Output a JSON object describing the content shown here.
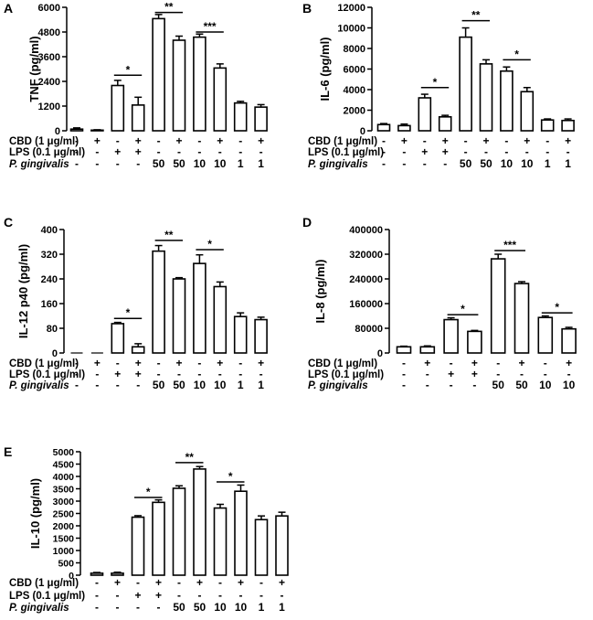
{
  "row_labels": {
    "cbd": "CBD (1 μg/ml)",
    "lps": "LPS (0.1 μg/ml)",
    "pg": "P. gingivalis"
  },
  "chart_data": [
    {
      "id": "A",
      "panel_label": "A",
      "type": "bar",
      "ylabel": "TNF (pg/ml)",
      "ylim": [
        0,
        6000
      ],
      "yticks": [
        0,
        1200,
        2400,
        3600,
        4800,
        6000
      ],
      "ytick_labels": [
        "0",
        "1200",
        "2400",
        "3600",
        "4800",
        "6000"
      ],
      "values": [
        80,
        30,
        2200,
        1250,
        5450,
        4400,
        4550,
        3050,
        1350,
        1150
      ],
      "errors": [
        60,
        20,
        250,
        380,
        200,
        200,
        150,
        200,
        80,
        120
      ],
      "cbd": [
        "-",
        "+",
        "-",
        "+",
        "-",
        "+",
        "-",
        "+",
        "-",
        "+"
      ],
      "lps": [
        "-",
        "-",
        "+",
        "+",
        "-",
        "-",
        "-",
        "-",
        "-",
        "-"
      ],
      "pg": [
        "-",
        "-",
        "-",
        "-",
        "50",
        "50",
        "10",
        "10",
        "1",
        "1"
      ],
      "sig": [
        {
          "from": 2,
          "to": 3,
          "y": 2700,
          "label": "*"
        },
        {
          "from": 4,
          "to": 5,
          "y": 5750,
          "label": "**"
        },
        {
          "from": 6,
          "to": 7,
          "y": 4800,
          "label": "***"
        }
      ]
    },
    {
      "id": "B",
      "panel_label": "B",
      "type": "bar",
      "ylabel": "IL-6 (pg/ml)",
      "ylim": [
        0,
        12000
      ],
      "yticks": [
        0,
        2000,
        4000,
        6000,
        8000,
        10000,
        12000
      ],
      "ytick_labels": [
        "0",
        "2000",
        "4000",
        "6000",
        "8000",
        "10000",
        "12000"
      ],
      "values": [
        600,
        500,
        3200,
        1350,
        9100,
        6500,
        5800,
        3800,
        1050,
        1000
      ],
      "errors": [
        100,
        150,
        350,
        150,
        900,
        400,
        400,
        400,
        100,
        150
      ],
      "cbd": [
        "-",
        "+",
        "-",
        "+",
        "-",
        "+",
        "-",
        "+",
        "-",
        "+"
      ],
      "lps": [
        "-",
        "-",
        "+",
        "+",
        "-",
        "-",
        "-",
        "-",
        "-",
        "-"
      ],
      "pg": [
        "-",
        "-",
        "-",
        "-",
        "50",
        "50",
        "10",
        "10",
        "1",
        "1"
      ],
      "sig": [
        {
          "from": 2,
          "to": 3,
          "y": 4200,
          "label": "*"
        },
        {
          "from": 4,
          "to": 5,
          "y": 10700,
          "label": "**"
        },
        {
          "from": 6,
          "to": 7,
          "y": 6900,
          "label": "*"
        }
      ]
    },
    {
      "id": "C",
      "panel_label": "C",
      "type": "bar",
      "ylabel": "IL-12 p40 (pg/ml)",
      "ylim": [
        0,
        400
      ],
      "yticks": [
        0,
        80,
        160,
        240,
        320,
        400
      ],
      "ytick_labels": [
        "0",
        "80",
        "160",
        "240",
        "320",
        "400"
      ],
      "values": [
        0,
        0,
        95,
        20,
        330,
        240,
        290,
        215,
        118,
        108
      ],
      "errors": [
        0,
        0,
        4,
        10,
        18,
        4,
        28,
        15,
        12,
        8
      ],
      "cbd": [
        "-",
        "+",
        "-",
        "+",
        "-",
        "+",
        "-",
        "+",
        "-",
        "+"
      ],
      "lps": [
        "-",
        "-",
        "+",
        "+",
        "-",
        "-",
        "-",
        "-",
        "-",
        "-"
      ],
      "pg": [
        "-",
        "-",
        "-",
        "-",
        "50",
        "50",
        "10",
        "10",
        "1",
        "1"
      ],
      "sig": [
        {
          "from": 2,
          "to": 3,
          "y": 112,
          "label": "*"
        },
        {
          "from": 4,
          "to": 5,
          "y": 365,
          "label": "**"
        },
        {
          "from": 6,
          "to": 7,
          "y": 335,
          "label": "*"
        }
      ]
    },
    {
      "id": "D",
      "panel_label": "D",
      "type": "bar",
      "ylabel": "IL-8 (pg/ml)",
      "ylim": [
        0,
        400000
      ],
      "yticks": [
        0,
        80000,
        160000,
        240000,
        320000,
        400000
      ],
      "ytick_labels": [
        "0",
        "80000",
        "160000",
        "240000",
        "320000",
        "400000"
      ],
      "values": [
        20000,
        20000,
        108000,
        70000,
        305000,
        225000,
        115000,
        78000
      ],
      "errors": [
        2000,
        3000,
        6000,
        3000,
        15000,
        6000,
        5000,
        5000
      ],
      "cbd": [
        "-",
        "+",
        "-",
        "+",
        "-",
        "+",
        "-",
        "+"
      ],
      "lps": [
        "-",
        "-",
        "+",
        "+",
        "-",
        "-",
        "-",
        "-"
      ],
      "pg": [
        "-",
        "-",
        "-",
        "-",
        "50",
        "50",
        "10",
        "10"
      ],
      "sig": [
        {
          "from": 2,
          "to": 3,
          "y": 124000,
          "label": "*"
        },
        {
          "from": 4,
          "to": 5,
          "y": 332000,
          "label": "***"
        },
        {
          "from": 6,
          "to": 7,
          "y": 130000,
          "label": "*"
        }
      ]
    },
    {
      "id": "E",
      "panel_label": "E",
      "type": "bar",
      "ylabel": "IL-10 (pg/ml)",
      "ylim": [
        0,
        5000
      ],
      "yticks": [
        0,
        500,
        1000,
        1500,
        2000,
        2500,
        3000,
        3500,
        4000,
        4500,
        5000
      ],
      "ytick_labels": [
        "0",
        "500",
        "1000",
        "1500",
        "2000",
        "2500",
        "3000",
        "3500",
        "4000",
        "4500",
        "5000"
      ],
      "values": [
        80,
        80,
        2350,
        2950,
        3520,
        4300,
        2720,
        3400,
        2250,
        2400
      ],
      "errors": [
        30,
        40,
        60,
        100,
        100,
        100,
        150,
        250,
        150,
        150
      ],
      "cbd": [
        "-",
        "+",
        "-",
        "+",
        "-",
        "+",
        "-",
        "+",
        "-",
        "+"
      ],
      "lps": [
        "-",
        "-",
        "+",
        "+",
        "-",
        "-",
        "-",
        "-",
        "-",
        "-"
      ],
      "pg": [
        "-",
        "-",
        "-",
        "-",
        "50",
        "50",
        "10",
        "10",
        "1",
        "1"
      ],
      "sig": [
        {
          "from": 2,
          "to": 3,
          "y": 3150,
          "label": "*"
        },
        {
          "from": 4,
          "to": 5,
          "y": 4560,
          "label": "**"
        },
        {
          "from": 6,
          "to": 7,
          "y": 3780,
          "label": "*"
        }
      ]
    }
  ]
}
